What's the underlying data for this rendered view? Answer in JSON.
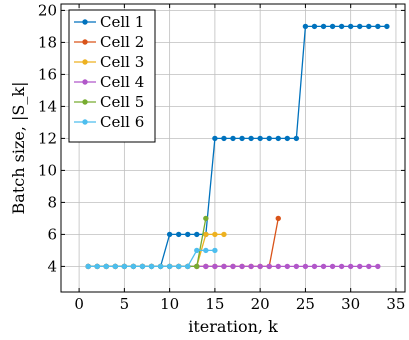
{
  "chart_data": {
    "type": "line",
    "title": "",
    "xlabel": "iteration, k",
    "ylabel": "Batch size, |S_k|",
    "xlim": [
      -2,
      36
    ],
    "ylim": [
      2.4,
      20.4
    ],
    "xticks": [
      0,
      5,
      10,
      15,
      20,
      25,
      30,
      35
    ],
    "yticks": [
      4,
      6,
      8,
      10,
      12,
      14,
      16,
      18,
      20
    ],
    "grid": true,
    "legend": "top-left",
    "series": [
      {
        "name": "Cell 1",
        "color": "#0072BD",
        "x": [
          1,
          2,
          3,
          4,
          5,
          6,
          7,
          8,
          9,
          10,
          11,
          12,
          13,
          14,
          15,
          16,
          17,
          18,
          19,
          20,
          21,
          22,
          23,
          24,
          25,
          26,
          27,
          28,
          29,
          30,
          31,
          32,
          33,
          34
        ],
        "y": [
          4,
          4,
          4,
          4,
          4,
          4,
          4,
          4,
          4,
          6,
          6,
          6,
          6,
          6,
          12,
          12,
          12,
          12,
          12,
          12,
          12,
          12,
          12,
          12,
          19,
          19,
          19,
          19,
          19,
          19,
          19,
          19,
          19,
          19
        ]
      },
      {
        "name": "Cell 2",
        "color": "#D95319",
        "x": [
          1,
          2,
          3,
          4,
          5,
          6,
          7,
          8,
          9,
          10,
          11,
          12,
          13,
          14,
          15,
          16,
          17,
          18,
          19,
          20,
          21,
          22
        ],
        "y": [
          4,
          4,
          4,
          4,
          4,
          4,
          4,
          4,
          4,
          4,
          4,
          4,
          4,
          4,
          4,
          4,
          4,
          4,
          4,
          4,
          4,
          7
        ]
      },
      {
        "name": "Cell 3",
        "color": "#EDB120",
        "x": [
          1,
          2,
          3,
          4,
          5,
          6,
          7,
          8,
          9,
          10,
          11,
          12,
          13,
          14,
          15,
          16
        ],
        "y": [
          4,
          4,
          4,
          4,
          4,
          4,
          4,
          4,
          4,
          4,
          4,
          4,
          4,
          6,
          6,
          6
        ]
      },
      {
        "name": "Cell 4",
        "color": "#B157C9",
        "x": [
          1,
          2,
          3,
          4,
          5,
          6,
          7,
          8,
          9,
          10,
          11,
          12,
          13,
          14,
          15,
          16,
          17,
          18,
          19,
          20,
          21,
          22,
          23,
          24,
          25,
          26,
          27,
          28,
          29,
          30,
          31,
          32,
          33
        ],
        "y": [
          4,
          4,
          4,
          4,
          4,
          4,
          4,
          4,
          4,
          4,
          4,
          4,
          4,
          4,
          4,
          4,
          4,
          4,
          4,
          4,
          4,
          4,
          4,
          4,
          4,
          4,
          4,
          4,
          4,
          4,
          4,
          4,
          4
        ]
      },
      {
        "name": "Cell 5",
        "color": "#77AC30",
        "x": [
          1,
          2,
          3,
          4,
          5,
          6,
          7,
          8,
          9,
          10,
          11,
          12,
          13,
          14
        ],
        "y": [
          4,
          4,
          4,
          4,
          4,
          4,
          4,
          4,
          4,
          4,
          4,
          4,
          4,
          7
        ]
      },
      {
        "name": "Cell 6",
        "color": "#4DBEEE",
        "x": [
          1,
          2,
          3,
          4,
          5,
          6,
          7,
          8,
          9,
          10,
          11,
          12,
          13,
          14,
          15
        ],
        "y": [
          4,
          4,
          4,
          4,
          4,
          4,
          4,
          4,
          4,
          4,
          4,
          4,
          5,
          5,
          5
        ]
      }
    ]
  }
}
